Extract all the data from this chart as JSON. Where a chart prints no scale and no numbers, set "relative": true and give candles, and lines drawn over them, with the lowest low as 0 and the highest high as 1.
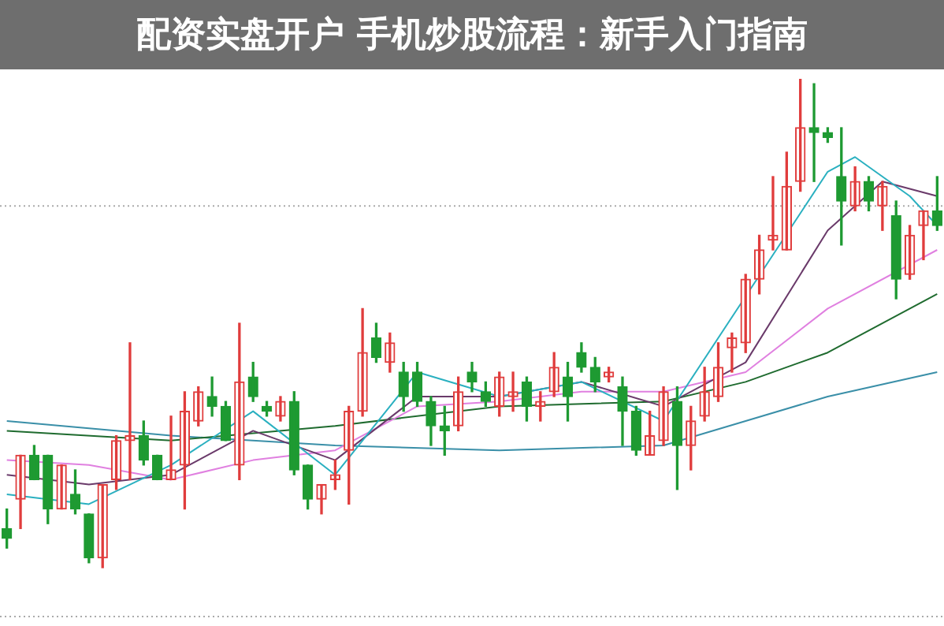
{
  "chart_data": {
    "type": "candlestick",
    "title": "配资实盘开户 手机炒股流程：新手入门指南",
    "relative": true,
    "tick_labels": false,
    "categories": [
      null,
      null,
      null,
      null,
      null,
      null,
      null,
      null,
      null,
      null,
      null,
      null,
      null,
      null,
      null,
      null,
      null,
      null,
      null,
      null,
      null,
      null,
      null,
      null,
      null,
      null,
      null,
      null,
      null,
      null,
      null,
      null,
      null,
      null,
      null,
      null,
      null,
      null,
      null,
      null,
      null,
      null,
      null,
      null,
      null,
      null,
      null,
      null,
      null,
      null,
      null,
      null,
      null,
      null,
      null,
      null,
      null,
      null,
      null,
      null,
      null,
      null,
      null,
      null,
      null,
      null,
      null,
      null,
      null
    ],
    "ohlc": [
      [
        0.08,
        0.12,
        0.04,
        0.06
      ],
      [
        0.14,
        0.23,
        0.08,
        0.23
      ],
      [
        0.23,
        0.25,
        0.18,
        0.18
      ],
      [
        0.23,
        0.23,
        0.09,
        0.12
      ],
      [
        0.12,
        0.21,
        0.12,
        0.21
      ],
      [
        0.15,
        0.2,
        0.11,
        0.12
      ],
      [
        0.11,
        0.11,
        0.01,
        0.02
      ],
      [
        0.02,
        0.17,
        0,
        0.17
      ],
      [
        0.18,
        0.27,
        0.16,
        0.26
      ],
      [
        0.26,
        0.46,
        0.18,
        0.27
      ],
      [
        0.27,
        0.3,
        0.21,
        0.22
      ],
      [
        0.23,
        0.23,
        0.18,
        0.18
      ],
      [
        0.18,
        0.31,
        0.18,
        0.2
      ],
      [
        0.21,
        0.36,
        0.12,
        0.32
      ],
      [
        0.3,
        0.37,
        0.29,
        0.36
      ],
      [
        0.35,
        0.39,
        0.31,
        0.33
      ],
      [
        0.33,
        0.34,
        0.26,
        0.26
      ],
      [
        0.21,
        0.5,
        0.18,
        0.38
      ],
      [
        0.39,
        0.42,
        0.34,
        0.35
      ],
      [
        0.33,
        0.34,
        0.31,
        0.32
      ],
      [
        0.31,
        0.35,
        0.3,
        0.34
      ],
      [
        0.34,
        0.36,
        0.19,
        0.2
      ],
      [
        0.21,
        0.21,
        0.12,
        0.14
      ],
      [
        0.14,
        0.17,
        0.11,
        0.17
      ],
      [
        0.18,
        0.22,
        0.16,
        0.19
      ],
      [
        0.24,
        0.33,
        0.13,
        0.32
      ],
      [
        0.32,
        0.53,
        0.31,
        0.44
      ],
      [
        0.47,
        0.5,
        0.42,
        0.43
      ],
      [
        0.42,
        0.48,
        0.4,
        0.46
      ],
      [
        0.4,
        0.42,
        0.32,
        0.35
      ],
      [
        0.4,
        0.42,
        0.33,
        0.34
      ],
      [
        0.34,
        0.35,
        0.25,
        0.29
      ],
      [
        0.29,
        0.33,
        0.23,
        0.28
      ],
      [
        0.29,
        0.39,
        0.28,
        0.36
      ],
      [
        0.4,
        0.42,
        0.36,
        0.38
      ],
      [
        0.36,
        0.38,
        0.33,
        0.34
      ],
      [
        0.33,
        0.4,
        0.31,
        0.39
      ],
      [
        0.35,
        0.4,
        0.32,
        0.36
      ],
      [
        0.38,
        0.39,
        0.3,
        0.33
      ],
      [
        0.33,
        0.36,
        0.3,
        0.34
      ],
      [
        0.36,
        0.44,
        0.35,
        0.41
      ],
      [
        0.39,
        0.42,
        0.3,
        0.35
      ],
      [
        0.44,
        0.46,
        0.4,
        0.41
      ],
      [
        0.41,
        0.43,
        0.36,
        0.38
      ],
      [
        0.39,
        0.41,
        0.38,
        0.4
      ],
      [
        0.37,
        0.39,
        0.25,
        0.32
      ],
      [
        0.32,
        0.33,
        0.23,
        0.24
      ],
      [
        0.23,
        0.32,
        0.23,
        0.27
      ],
      [
        0.26,
        0.37,
        0.25,
        0.36
      ],
      [
        0.34,
        0.37,
        0.16,
        0.25
      ],
      [
        0.25,
        0.33,
        0.2,
        0.3
      ],
      [
        0.31,
        0.41,
        0.3,
        0.36
      ],
      [
        0.35,
        0.46,
        0.34,
        0.41
      ],
      [
        0.45,
        0.48,
        0.4,
        0.47
      ],
      [
        0.46,
        0.6,
        0.44,
        0.59
      ],
      [
        0.59,
        0.68,
        0.56,
        0.65
      ],
      [
        0.67,
        0.8,
        0.65,
        0.68
      ],
      [
        0.65,
        0.85,
        0.65,
        0.78
      ],
      [
        0.79,
        1,
        0.77,
        0.9
      ],
      [
        0.9,
        0.99,
        0.79,
        0.89
      ],
      [
        0.89,
        0.9,
        0.87,
        0.88
      ],
      [
        0.8,
        0.9,
        0.66,
        0.75
      ],
      [
        0.74,
        0.82,
        0.73,
        0.79
      ],
      [
        0.79,
        0.8,
        0.73,
        0.75
      ],
      [
        0.74,
        0.79,
        0.69,
        0.78
      ],
      [
        0.72,
        0.75,
        0.55,
        0.59
      ],
      [
        0.6,
        0.7,
        0.59,
        0.68
      ],
      [
        0.7,
        0.73,
        0.63,
        0.73
      ],
      [
        0.73,
        0.8,
        0.69,
        0.7
      ]
    ],
    "colors": [
      "#1e9a32",
      "#e03c3c",
      "#1e9a32",
      "#1e9a32",
      "#e03c3c",
      "#1e9a32",
      "#1e9a32",
      "#e03c3c",
      "#e03c3c",
      "#e03c3c",
      "#1e9a32",
      "#1e9a32",
      "#e03c3c",
      "#e03c3c",
      "#e03c3c",
      "#1e9a32",
      "#1e9a32",
      "#e03c3c",
      "#1e9a32",
      "#1e9a32",
      "#e03c3c",
      "#1e9a32",
      "#1e9a32",
      "#e03c3c",
      "#e03c3c",
      "#e03c3c",
      "#e03c3c",
      "#1e9a32",
      "#e03c3c",
      "#1e9a32",
      "#1e9a32",
      "#1e9a32",
      "#1e9a32",
      "#e03c3c",
      "#1e9a32",
      "#1e9a32",
      "#e03c3c",
      "#e03c3c",
      "#1e9a32",
      "#e03c3c",
      "#e03c3c",
      "#1e9a32",
      "#1e9a32",
      "#1e9a32",
      "#e03c3c",
      "#1e9a32",
      "#1e9a32",
      "#e03c3c",
      "#e03c3c",
      "#1e9a32",
      "#e03c3c",
      "#e03c3c",
      "#e03c3c",
      "#e03c3c",
      "#e03c3c",
      "#e03c3c",
      "#e03c3c",
      "#e03c3c",
      "#e03c3c",
      "#1e9a32",
      "#1e9a32",
      "#1e9a32",
      "#e03c3c",
      "#1e9a32",
      "#e03c3c",
      "#1e9a32",
      "#e03c3c",
      "#e03c3c",
      "#1e9a32"
    ],
    "series": [
      {
        "type": "line",
        "color": "#2ab0c0",
        "values": [
          0.15,
          null,
          null,
          null,
          null,
          null,
          0.13,
          null,
          null,
          null,
          null,
          null,
          0.21,
          null,
          null,
          null,
          null,
          null,
          0.32,
          null,
          null,
          null,
          null,
          null,
          0.19,
          null,
          null,
          null,
          null,
          null,
          0.4,
          null,
          null,
          null,
          null,
          null,
          0.35,
          null,
          null,
          null,
          null,
          null,
          0.38,
          null,
          null,
          null,
          null,
          null,
          0.3,
          null,
          null,
          null,
          null,
          null,
          null,
          null,
          null,
          null,
          null,
          null,
          0.81,
          null,
          0.84,
          null,
          null,
          null,
          0.76,
          null,
          0.7
        ]
      },
      {
        "type": "line",
        "color": "#6a3a6a",
        "values": [
          0.19,
          null,
          null,
          null,
          null,
          null,
          0.17,
          null,
          null,
          null,
          null,
          null,
          0.19,
          null,
          null,
          null,
          null,
          null,
          0.28,
          null,
          null,
          null,
          null,
          null,
          0.22,
          null,
          null,
          null,
          null,
          null,
          0.35,
          null,
          null,
          null,
          null,
          null,
          0.35,
          null,
          null,
          null,
          null,
          null,
          0.38,
          null,
          null,
          null,
          null,
          null,
          0.33,
          null,
          null,
          null,
          null,
          null,
          0.42,
          null,
          null,
          null,
          null,
          null,
          0.69,
          null,
          null,
          null,
          0.79,
          null,
          null,
          null,
          0.76
        ]
      },
      {
        "type": "line",
        "color": "#e080e0",
        "values": [
          0.22,
          null,
          null,
          null,
          null,
          null,
          0.21,
          null,
          null,
          null,
          null,
          null,
          0.18,
          null,
          null,
          null,
          null,
          null,
          0.22,
          null,
          null,
          null,
          null,
          null,
          0.24,
          null,
          null,
          null,
          null,
          null,
          0.33,
          null,
          null,
          null,
          null,
          null,
          0.34,
          null,
          null,
          null,
          null,
          null,
          0.36,
          null,
          null,
          null,
          null,
          null,
          0.36,
          null,
          null,
          null,
          null,
          null,
          0.4,
          null,
          null,
          null,
          null,
          null,
          0.53,
          null,
          null,
          null,
          null,
          null,
          null,
          null,
          0.65
        ]
      },
      {
        "type": "line",
        "color": "#1f6b2f",
        "values": [
          0.28,
          null,
          null,
          null,
          null,
          null,
          null,
          null,
          null,
          null,
          null,
          null,
          0.26,
          null,
          null,
          null,
          null,
          null,
          null,
          null,
          null,
          null,
          null,
          null,
          0.29,
          null,
          null,
          null,
          null,
          null,
          null,
          null,
          null,
          null,
          null,
          null,
          0.33,
          null,
          null,
          null,
          null,
          null,
          null,
          null,
          null,
          null,
          null,
          null,
          0.34,
          null,
          null,
          null,
          null,
          null,
          0.38,
          null,
          null,
          null,
          null,
          null,
          0.44,
          null,
          null,
          null,
          null,
          null,
          null,
          null,
          0.56
        ]
      },
      {
        "type": "line",
        "color": "#3a8fa8",
        "values": [
          0.3,
          null,
          null,
          null,
          null,
          null,
          null,
          null,
          null,
          null,
          null,
          null,
          0.27,
          null,
          null,
          null,
          null,
          null,
          null,
          null,
          null,
          null,
          null,
          null,
          0.25,
          null,
          null,
          null,
          null,
          null,
          null,
          null,
          null,
          null,
          null,
          null,
          0.24,
          null,
          null,
          null,
          null,
          null,
          null,
          null,
          null,
          null,
          null,
          null,
          0.25,
          null,
          null,
          null,
          null,
          null,
          0.3,
          null,
          null,
          null,
          null,
          null,
          0.35,
          null,
          null,
          null,
          null,
          null,
          null,
          null,
          0.4
        ]
      }
    ],
    "ref_lines": [
      {
        "axis": "y",
        "value": 0.74,
        "color": "#aaaaaa",
        "line_style": "dotted"
      },
      {
        "axis": "y",
        "value": -0.1,
        "color": "#aaaaaa",
        "line_style": "dotted"
      }
    ]
  }
}
